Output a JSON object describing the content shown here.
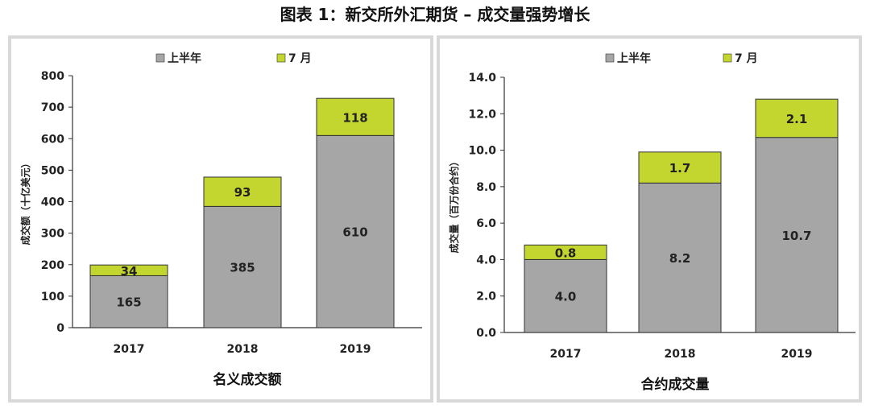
{
  "title": "图表 1：新交所外汇期货 – 成交量强势增长",
  "colors": {
    "h1": "#a6a6a6",
    "jul": "#c3d52f",
    "border": "#d9d9d9"
  },
  "chart_data": [
    {
      "type": "bar",
      "stacked": true,
      "categories": [
        "2017",
        "2018",
        "2019"
      ],
      "series": [
        {
          "name": "上半年",
          "values": [
            165,
            385,
            610
          ],
          "labels": [
            "165",
            "385",
            "610"
          ]
        },
        {
          "name": "7 月",
          "values": [
            34,
            93,
            118
          ],
          "labels": [
            "34",
            "93",
            "118"
          ]
        }
      ],
      "ylabel": "成交额（十亿美元）",
      "xlabel": "名义成交额",
      "ylim": [
        0,
        800
      ],
      "yticks": [
        0,
        100,
        200,
        300,
        400,
        500,
        600,
        700,
        800
      ],
      "ytick_labels": [
        "0",
        "100",
        "200",
        "300",
        "400",
        "500",
        "600",
        "700",
        "800"
      ],
      "legend": "top",
      "grid": false
    },
    {
      "type": "bar",
      "stacked": true,
      "categories": [
        "2017",
        "2018",
        "2019"
      ],
      "series": [
        {
          "name": "上半年",
          "values": [
            4.0,
            8.2,
            10.7
          ],
          "labels": [
            "4.0",
            "8.2",
            "10.7"
          ]
        },
        {
          "name": "7 月",
          "values": [
            0.8,
            1.7,
            2.1
          ],
          "labels": [
            "0.8",
            "1.7",
            "2.1"
          ]
        }
      ],
      "ylabel": "成交量（百万份合约）",
      "xlabel": "合约成交量",
      "ylim": [
        0,
        14
      ],
      "yticks": [
        0,
        2,
        4,
        6,
        8,
        10,
        12,
        14
      ],
      "ytick_labels": [
        "0.0",
        "2.0",
        "4.0",
        "6.0",
        "8.0",
        "10.0",
        "12.0",
        "14.0"
      ],
      "legend": "top",
      "grid": false
    }
  ]
}
